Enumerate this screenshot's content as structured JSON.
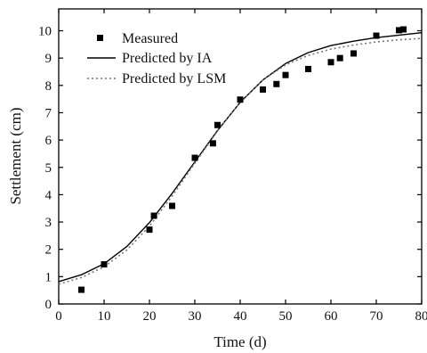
{
  "chart_data": {
    "type": "scatter",
    "title": "",
    "xlabel": "Time (d)",
    "ylabel": "Settlement (cm)",
    "xlim": [
      0,
      80
    ],
    "ylim": [
      0,
      10.8
    ],
    "xticks": [
      0,
      10,
      20,
      30,
      40,
      50,
      60,
      70,
      80
    ],
    "yticks": [
      0,
      1,
      2,
      3,
      4,
      5,
      6,
      7,
      8,
      9,
      10
    ],
    "grid": false,
    "legend_position": "top-left",
    "series": [
      {
        "name": "Measured",
        "kind": "scatter",
        "marker": "square",
        "color": "#000000",
        "x": [
          5,
          10,
          20,
          21,
          25,
          30,
          34,
          35,
          40,
          45,
          48,
          50,
          55,
          60,
          62,
          65,
          70,
          75,
          76
        ],
        "y": [
          0.52,
          1.45,
          2.72,
          3.23,
          3.59,
          5.35,
          5.88,
          6.55,
          7.48,
          7.85,
          8.05,
          8.38,
          8.6,
          8.85,
          9.0,
          9.17,
          9.82,
          10.02,
          10.05
        ]
      },
      {
        "name": "Predicted by IA",
        "kind": "line",
        "style": "solid",
        "color": "#000000",
        "x": [
          0,
          5,
          10,
          15,
          20,
          25,
          30,
          35,
          40,
          45,
          50,
          55,
          60,
          65,
          70,
          75,
          80
        ],
        "y": [
          0.82,
          1.07,
          1.47,
          2.1,
          2.98,
          4.05,
          5.2,
          6.35,
          7.38,
          8.2,
          8.8,
          9.2,
          9.46,
          9.62,
          9.75,
          9.84,
          9.93
        ]
      },
      {
        "name": "Predicted by LSM",
        "kind": "line",
        "style": "dotted",
        "color": "#777777",
        "x": [
          0,
          5,
          10,
          15,
          20,
          25,
          30,
          35,
          40,
          45,
          50,
          55,
          60,
          65,
          70,
          75,
          80
        ],
        "y": [
          0.72,
          0.97,
          1.36,
          1.97,
          2.85,
          3.95,
          5.15,
          6.33,
          7.38,
          8.2,
          8.75,
          9.1,
          9.33,
          9.48,
          9.59,
          9.67,
          9.72
        ]
      }
    ]
  }
}
